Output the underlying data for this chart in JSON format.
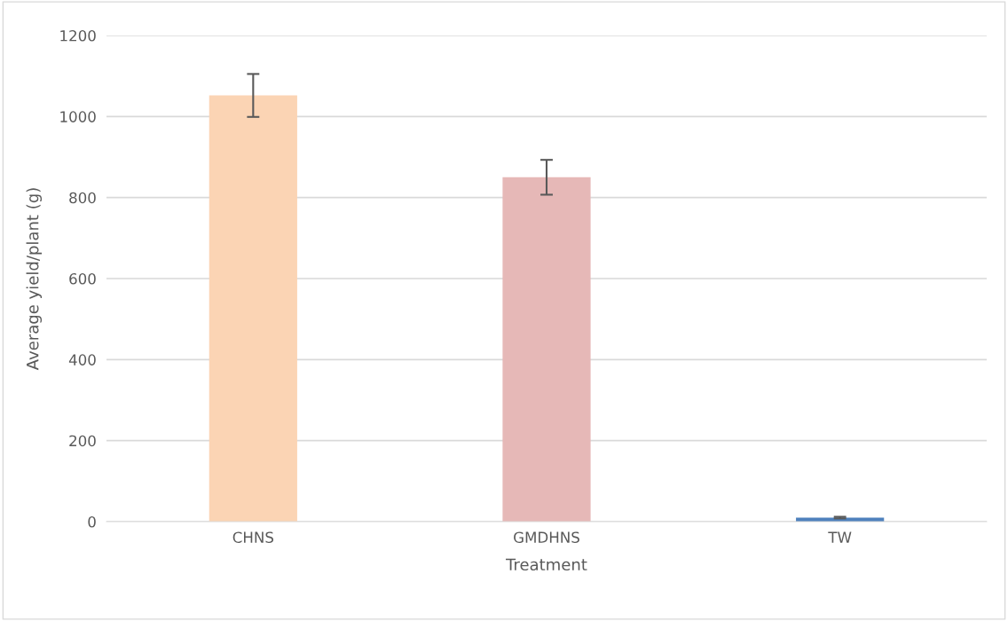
{
  "chart_data": {
    "type": "bar",
    "xlabel": "Treatment",
    "ylabel": "Average yield/plant (g)",
    "categories": [
      "CHNS",
      "GMDHNS",
      "TW"
    ],
    "values": [
      1052,
      850,
      10
    ],
    "errors": [
      53,
      43,
      2
    ],
    "colors": [
      "#fbd4b4",
      "#e6b8b7",
      "#4f81bd"
    ],
    "ylim": [
      0,
      1200
    ],
    "yticks": [
      0,
      200,
      400,
      600,
      800,
      1000,
      1200
    ],
    "grid": "y"
  }
}
